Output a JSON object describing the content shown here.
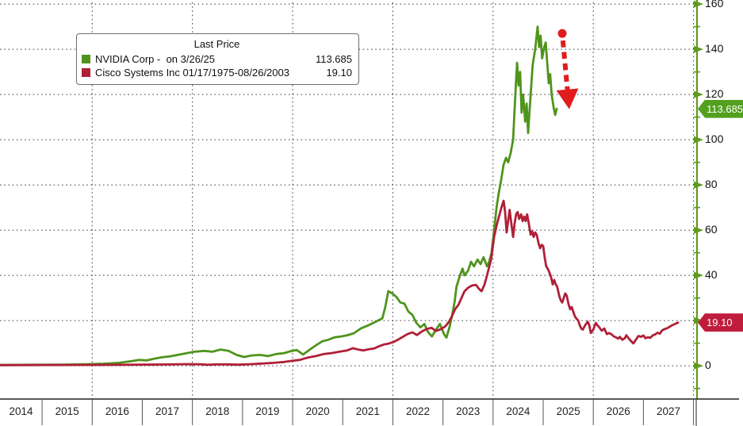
{
  "legend": {
    "title": "Last Price",
    "entries": [
      {
        "label": "NVIDIA Corp -  on 3/26/25",
        "value": "113.685",
        "color": "#4f941c"
      },
      {
        "label": "Cisco Systems Inc 01/17/1975-08/26/2003",
        "value": "19.10",
        "color": "#b01f38"
      }
    ]
  },
  "y_axis": {
    "color": "#5f9a20",
    "ticks": [
      {
        "v": 160,
        "label": "160"
      },
      {
        "v": 140,
        "label": "140"
      },
      {
        "v": 120,
        "label": "120"
      },
      {
        "v": 100,
        "label": "100"
      },
      {
        "v": 80,
        "label": "80"
      },
      {
        "v": 60,
        "label": "60"
      },
      {
        "v": 40,
        "label": "40"
      },
      {
        "v": 20,
        "label": "20"
      },
      {
        "v": 0,
        "label": "0"
      }
    ],
    "minor_ticks": [
      -10,
      10,
      30,
      50,
      70,
      90,
      110,
      130,
      150
    ]
  },
  "x_axis": {
    "labels": [
      "2014",
      "2015",
      "2016",
      "2017",
      "2018",
      "2019",
      "2020",
      "2021",
      "2022",
      "2023",
      "2024",
      "2025",
      "2026",
      "2027"
    ]
  },
  "badges": [
    {
      "id": "nvidia",
      "text": "113.685",
      "value": 113.685,
      "color": "#53a01e"
    },
    {
      "id": "cisco",
      "text": "19.10",
      "value": 19.1,
      "color": "#c01d3c"
    }
  ],
  "annotation": {
    "arrow": {
      "color": "#e01d1d",
      "from": [
        2025.38,
        147.0
      ],
      "to": [
        2025.52,
        113.5
      ]
    }
  },
  "chart_data": {
    "type": "line",
    "x_range": [
      2014.16,
      2028.07
    ],
    "y_range": [
      -14.7,
      161.8
    ],
    "grid": {
      "x_step_years": 2,
      "y_step": 20,
      "grid_on": true
    },
    "legend_position": "top-left",
    "series": [
      {
        "name": "NVIDIA Corp",
        "id": "nvidia-price-line",
        "color": "#4f941c",
        "last_price": 113.685,
        "points": [
          [
            2014.16,
            0.4
          ],
          [
            2014.79,
            0.45
          ],
          [
            2015.43,
            0.5
          ],
          [
            2015.9,
            0.7
          ],
          [
            2016.22,
            0.9
          ],
          [
            2016.53,
            1.3
          ],
          [
            2016.77,
            2.0
          ],
          [
            2016.93,
            2.6
          ],
          [
            2017.09,
            2.4
          ],
          [
            2017.25,
            3.2
          ],
          [
            2017.4,
            3.8
          ],
          [
            2017.56,
            4.2
          ],
          [
            2017.8,
            5.2
          ],
          [
            2018.04,
            6.2
          ],
          [
            2018.24,
            6.6
          ],
          [
            2018.4,
            6.2
          ],
          [
            2018.56,
            7.2
          ],
          [
            2018.72,
            6.6
          ],
          [
            2018.88,
            4.8
          ],
          [
            2019.03,
            3.9
          ],
          [
            2019.19,
            4.6
          ],
          [
            2019.35,
            4.8
          ],
          [
            2019.51,
            4.3
          ],
          [
            2019.67,
            5.2
          ],
          [
            2019.83,
            5.6
          ],
          [
            2019.95,
            6.4
          ],
          [
            2020.08,
            7.0
          ],
          [
            2020.21,
            5.0
          ],
          [
            2020.33,
            7.0
          ],
          [
            2020.46,
            9.0
          ],
          [
            2020.59,
            10.8
          ],
          [
            2020.71,
            11.5
          ],
          [
            2020.84,
            12.6
          ],
          [
            2020.97,
            13.0
          ],
          [
            2021.09,
            13.5
          ],
          [
            2021.22,
            14.4
          ],
          [
            2021.36,
            16.5
          ],
          [
            2021.52,
            18.0
          ],
          [
            2021.66,
            19.5
          ],
          [
            2021.79,
            21.0
          ],
          [
            2021.85,
            26.0
          ],
          [
            2021.91,
            33.0
          ],
          [
            2021.99,
            32.0
          ],
          [
            2022.07,
            30.5
          ],
          [
            2022.15,
            28.0
          ],
          [
            2022.23,
            27.5
          ],
          [
            2022.31,
            24.0
          ],
          [
            2022.39,
            22.5
          ],
          [
            2022.47,
            19.0
          ],
          [
            2022.55,
            17.0
          ],
          [
            2022.63,
            18.5
          ],
          [
            2022.7,
            15.0
          ],
          [
            2022.78,
            13.0
          ],
          [
            2022.86,
            16.0
          ],
          [
            2022.94,
            18.5
          ],
          [
            2023.02,
            14.0
          ],
          [
            2023.07,
            12.5
          ],
          [
            2023.13,
            17.0
          ],
          [
            2023.18,
            22.0
          ],
          [
            2023.23,
            28.0
          ],
          [
            2023.27,
            35.0
          ],
          [
            2023.34,
            40.0
          ],
          [
            2023.39,
            43.0
          ],
          [
            2023.43,
            40.0
          ],
          [
            2023.5,
            42.0
          ],
          [
            2023.56,
            46.0
          ],
          [
            2023.62,
            44.0
          ],
          [
            2023.69,
            47.0
          ],
          [
            2023.75,
            45.0
          ],
          [
            2023.81,
            48.0
          ],
          [
            2023.88,
            44.0
          ],
          [
            2023.92,
            46.0
          ],
          [
            2023.97,
            50.0
          ],
          [
            2024.02,
            60.0
          ],
          [
            2024.07,
            70.0
          ],
          [
            2024.11,
            76.0
          ],
          [
            2024.16,
            82.0
          ],
          [
            2024.21,
            89.0
          ],
          [
            2024.26,
            92.0
          ],
          [
            2024.3,
            90.0
          ],
          [
            2024.35,
            94.0
          ],
          [
            2024.4,
            100.0
          ],
          [
            2024.45,
            122.0
          ],
          [
            2024.48,
            134.0
          ],
          [
            2024.51,
            124.0
          ],
          [
            2024.54,
            130.0
          ],
          [
            2024.57,
            112.0
          ],
          [
            2024.6,
            120.0
          ],
          [
            2024.64,
            108.0
          ],
          [
            2024.67,
            116.0
          ],
          [
            2024.7,
            103.0
          ],
          [
            2024.75,
            120.0
          ],
          [
            2024.79,
            133.0
          ],
          [
            2024.84,
            140.0
          ],
          [
            2024.89,
            150.0
          ],
          [
            2024.92,
            141.0
          ],
          [
            2024.95,
            146.0
          ],
          [
            2024.98,
            136.0
          ],
          [
            2025.02,
            141.0
          ],
          [
            2025.05,
            143.0
          ],
          [
            2025.08,
            134.0
          ],
          [
            2025.11,
            125.0
          ],
          [
            2025.14,
            129.0
          ],
          [
            2025.17,
            120.0
          ],
          [
            2025.21,
            114.0
          ],
          [
            2025.24,
            111.0
          ],
          [
            2025.27,
            113.685
          ]
        ]
      },
      {
        "name": "Cisco Systems Inc",
        "id": "cisco-price-line",
        "color": "#b01f38",
        "last_price": 19.1,
        "points": [
          [
            2014.16,
            0.3
          ],
          [
            2015.11,
            0.35
          ],
          [
            2016.06,
            0.4
          ],
          [
            2017.01,
            0.5
          ],
          [
            2017.56,
            0.6
          ],
          [
            2017.88,
            0.75
          ],
          [
            2018.12,
            0.7
          ],
          [
            2018.31,
            0.45
          ],
          [
            2018.47,
            0.6
          ],
          [
            2018.67,
            0.65
          ],
          [
            2018.91,
            0.5
          ],
          [
            2019.15,
            0.7
          ],
          [
            2019.38,
            1.0
          ],
          [
            2019.62,
            1.3
          ],
          [
            2019.83,
            1.7
          ],
          [
            2020.0,
            2.2
          ],
          [
            2020.14,
            2.6
          ],
          [
            2020.3,
            3.6
          ],
          [
            2020.46,
            4.3
          ],
          [
            2020.62,
            5.2
          ],
          [
            2020.78,
            5.6
          ],
          [
            2020.93,
            6.2
          ],
          [
            2021.09,
            6.8
          ],
          [
            2021.2,
            7.8
          ],
          [
            2021.31,
            7.2
          ],
          [
            2021.41,
            6.8
          ],
          [
            2021.52,
            7.3
          ],
          [
            2021.63,
            7.7
          ],
          [
            2021.72,
            8.6
          ],
          [
            2021.82,
            9.4
          ],
          [
            2021.91,
            9.8
          ],
          [
            2022.01,
            10.5
          ],
          [
            2022.1,
            11.5
          ],
          [
            2022.2,
            12.8
          ],
          [
            2022.29,
            14.0
          ],
          [
            2022.39,
            14.8
          ],
          [
            2022.48,
            13.6
          ],
          [
            2022.58,
            15.2
          ],
          [
            2022.67,
            16.2
          ],
          [
            2022.77,
            16.8
          ],
          [
            2022.86,
            15.4
          ],
          [
            2022.96,
            16.2
          ],
          [
            2023.05,
            17.5
          ],
          [
            2023.12,
            19.5
          ],
          [
            2023.18,
            22.0
          ],
          [
            2023.24,
            25.0
          ],
          [
            2023.31,
            27.0
          ],
          [
            2023.37,
            30.0
          ],
          [
            2023.43,
            33.0
          ],
          [
            2023.5,
            34.5
          ],
          [
            2023.58,
            35.5
          ],
          [
            2023.66,
            35.8
          ],
          [
            2023.72,
            34.0
          ],
          [
            2023.77,
            33.0
          ],
          [
            2023.83,
            36.0
          ],
          [
            2023.89,
            41.0
          ],
          [
            2023.96,
            47.0
          ],
          [
            2024.02,
            57.0
          ],
          [
            2024.08,
            63.0
          ],
          [
            2024.13,
            67.0
          ],
          [
            2024.18,
            71.0
          ],
          [
            2024.21,
            73.0
          ],
          [
            2024.24,
            68.0
          ],
          [
            2024.27,
            59.0
          ],
          [
            2024.3,
            64.0
          ],
          [
            2024.33,
            69.0
          ],
          [
            2024.37,
            62.0
          ],
          [
            2024.4,
            57.0
          ],
          [
            2024.43,
            63.0
          ],
          [
            2024.46,
            67.0
          ],
          [
            2024.49,
            68.0
          ],
          [
            2024.52,
            65.0
          ],
          [
            2024.56,
            67.0
          ],
          [
            2024.59,
            64.0
          ],
          [
            2024.62,
            66.0
          ],
          [
            2024.65,
            64.0
          ],
          [
            2024.68,
            67.0
          ],
          [
            2024.72,
            62.0
          ],
          [
            2024.75,
            58.0
          ],
          [
            2024.78,
            59.5
          ],
          [
            2024.81,
            57.0
          ],
          [
            2024.84,
            59.0
          ],
          [
            2024.87,
            58.0
          ],
          [
            2024.91,
            54.0
          ],
          [
            2024.94,
            52.0
          ],
          [
            2024.97,
            53.5
          ],
          [
            2025.0,
            53.0
          ],
          [
            2025.03,
            48.0
          ],
          [
            2025.06,
            44.0
          ],
          [
            2025.09,
            43.0
          ],
          [
            2025.13,
            41.0
          ],
          [
            2025.16,
            39.0
          ],
          [
            2025.19,
            36.0
          ],
          [
            2025.22,
            38.0
          ],
          [
            2025.25,
            36.0
          ],
          [
            2025.28,
            35.0
          ],
          [
            2025.32,
            31.0
          ],
          [
            2025.35,
            29.0
          ],
          [
            2025.38,
            28.0
          ],
          [
            2025.41,
            30.0
          ],
          [
            2025.44,
            32.0
          ],
          [
            2025.47,
            31.0
          ],
          [
            2025.51,
            27.0
          ],
          [
            2025.54,
            25.0
          ],
          [
            2025.57,
            26.0
          ],
          [
            2025.6,
            24.0
          ],
          [
            2025.63,
            22.0
          ],
          [
            2025.66,
            21.0
          ],
          [
            2025.7,
            20.0
          ],
          [
            2025.73,
            18.0
          ],
          [
            2025.76,
            16.5
          ],
          [
            2025.79,
            16.0
          ],
          [
            2025.84,
            18.0
          ],
          [
            2025.89,
            19.5
          ],
          [
            2025.92,
            18.0
          ],
          [
            2025.95,
            14.5
          ],
          [
            2026.0,
            16.0
          ],
          [
            2026.05,
            19.0
          ],
          [
            2026.08,
            18.0
          ],
          [
            2026.12,
            17.0
          ],
          [
            2026.17,
            15.5
          ],
          [
            2026.22,
            16.5
          ],
          [
            2026.27,
            14.0
          ],
          [
            2026.31,
            14.5
          ],
          [
            2026.36,
            14.0
          ],
          [
            2026.41,
            13.0
          ],
          [
            2026.46,
            12.5
          ],
          [
            2026.5,
            12.0
          ],
          [
            2026.53,
            12.8
          ],
          [
            2026.58,
            11.5
          ],
          [
            2026.63,
            12.2
          ],
          [
            2026.66,
            13.5
          ],
          [
            2026.71,
            12.0
          ],
          [
            2026.76,
            10.8
          ],
          [
            2026.8,
            9.9
          ],
          [
            2026.85,
            11.5
          ],
          [
            2026.9,
            13.2
          ],
          [
            2026.95,
            12.8
          ],
          [
            2027.0,
            13.4
          ],
          [
            2027.04,
            12.2
          ],
          [
            2027.09,
            12.6
          ],
          [
            2027.14,
            12.4
          ],
          [
            2027.19,
            13.5
          ],
          [
            2027.23,
            13.8
          ],
          [
            2027.28,
            14.6
          ],
          [
            2027.33,
            14.2
          ],
          [
            2027.37,
            15.6
          ],
          [
            2027.42,
            16.2
          ],
          [
            2027.47,
            16.6
          ],
          [
            2027.52,
            17.2
          ],
          [
            2027.56,
            17.8
          ],
          [
            2027.61,
            18.3
          ],
          [
            2027.66,
            18.8
          ],
          [
            2027.69,
            19.1
          ]
        ]
      }
    ]
  }
}
